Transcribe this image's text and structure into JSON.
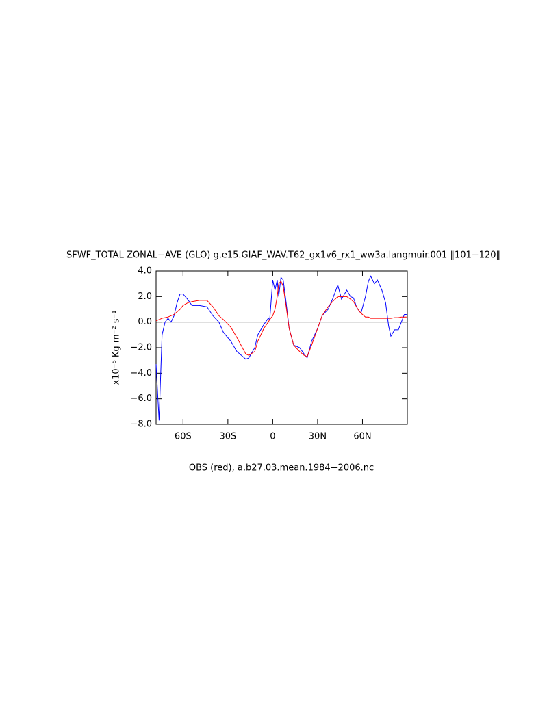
{
  "chart_data": {
    "type": "line",
    "title": "SFWF_TOTAL ZONAL−AVE (GLO) g.e15.GIAF_WAV.T62_gx1v6_rx1_ww3a.langmuir.001 ‖101−120‖",
    "subtitle": "OBS (red), a.b27.03.mean.1984−2006.nc",
    "ylabel": "x10⁻⁵ Kg m⁻² s⁻¹",
    "x": [
      -78,
      -76,
      -74,
      -72,
      -70,
      -68,
      -66,
      -64,
      -62,
      -60,
      -57,
      -54,
      -49,
      -44,
      -40,
      -36,
      -33,
      -28,
      -24,
      -18,
      -16,
      -12,
      -10,
      -6,
      -3,
      -2,
      0,
      1.5,
      3,
      4,
      5.5,
      7,
      9,
      11,
      14,
      18,
      21,
      23,
      26,
      30,
      33,
      37,
      40,
      43.5,
      46,
      49.5,
      52,
      54,
      56,
      57,
      59,
      62,
      64,
      65.5,
      68,
      70,
      73,
      75.5,
      77.5,
      79,
      81.5,
      84,
      86,
      88,
      89.5
    ],
    "series": [
      {
        "color": "#0000ff",
        "values": [
          -3.3,
          -7.7,
          -1.0,
          0,
          0.3,
          0,
          0.5,
          1.5,
          2.2,
          2.2,
          1.8,
          1.3,
          1.3,
          1.2,
          0.5,
          0,
          -0.8,
          -1.5,
          -2.3,
          -2.9,
          -2.8,
          -2.0,
          -1.0,
          -0.2,
          0.3,
          0.2,
          3.3,
          2.5,
          3.3,
          2.0,
          3.5,
          3.3,
          1.5,
          -0.5,
          -1.8,
          -2.0,
          -2.5,
          -2.8,
          -1.5,
          -0.5,
          0.5,
          1.0,
          1.8,
          2.9,
          1.8,
          2.5,
          2.0,
          1.9,
          1.2,
          1.0,
          0.7,
          2.0,
          3.2,
          3.6,
          3.0,
          3.3,
          2.5,
          1.5,
          -0.3,
          -1.1,
          -0.6,
          -0.6,
          0,
          0.6,
          0.6
        ]
      },
      {
        "color": "#ff0000",
        "values": [
          0.1,
          0.2,
          0.3,
          0.35,
          0.4,
          0.5,
          0.6,
          0.8,
          1.0,
          1.3,
          1.5,
          1.6,
          1.7,
          1.7,
          1.2,
          0.5,
          0.2,
          -0.4,
          -1.2,
          -2.5,
          -2.6,
          -2.3,
          -1.5,
          -0.5,
          0,
          0.2,
          0.5,
          1.0,
          2.0,
          3.0,
          3.2,
          2.8,
          1.2,
          -0.5,
          -1.8,
          -2.3,
          -2.6,
          -2.7,
          -1.8,
          -0.5,
          0.5,
          1.2,
          1.6,
          2.0,
          2.0,
          2.0,
          1.8,
          1.6,
          1.2,
          1.0,
          0.7,
          0.4,
          0.4,
          0.3,
          0.3,
          0.3,
          0.3,
          0.3,
          0.3,
          0.3,
          0.35,
          0.35,
          0.4,
          0.4,
          0.4
        ]
      }
    ],
    "xlim": [
      -78,
      90
    ],
    "xticks": [
      {
        "value": -60,
        "label": "60S"
      },
      {
        "value": -30,
        "label": "30S"
      },
      0,
      {
        "value": 30,
        "label": "30N"
      },
      {
        "value": 60,
        "label": "60N"
      }
    ],
    "ylim": [
      -8,
      4
    ],
    "yticks": [
      {
        "value": 4,
        "label": "4.0"
      },
      {
        "value": 2,
        "label": "2.0"
      },
      {
        "value": 0,
        "label": "0.0"
      },
      {
        "value": -2,
        "label": "−2.0"
      },
      {
        "value": -4,
        "label": "−4.0"
      },
      {
        "value": -6,
        "label": "−6.0"
      },
      {
        "value": -8,
        "label": "−8.0"
      }
    ]
  }
}
